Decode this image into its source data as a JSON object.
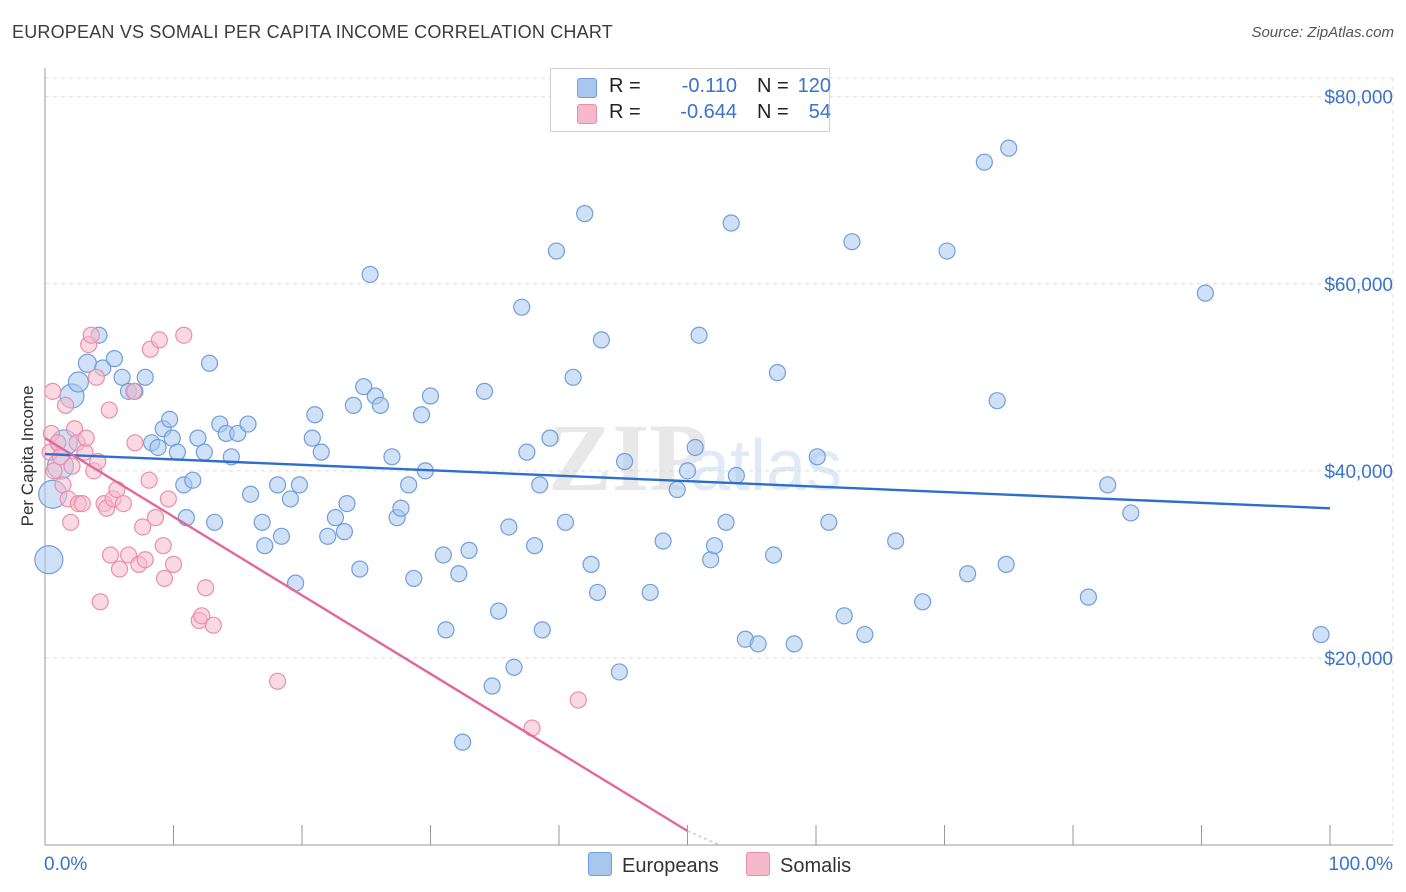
{
  "header": {
    "title": "EUROPEAN VS SOMALI PER CAPITA INCOME CORRELATION CHART",
    "source": "Source: ZipAtlas.com"
  },
  "legend": {
    "rows": [
      {
        "r_label": "R =",
        "r_value": "-0.110",
        "n_label": "N =",
        "n_value": "120"
      },
      {
        "r_label": "R =",
        "r_value": "-0.644",
        "n_label": "N =",
        "n_value": "54"
      }
    ]
  },
  "series_legend": [
    "Europeans",
    "Somalis"
  ],
  "colors": {
    "europeans_fill": "#a9c6ef",
    "europeans_stroke": "#6f9fdc",
    "europeans_line": "#2e6fcb",
    "somalis_fill": "#f6b9cc",
    "somalis_stroke": "#e98fab",
    "somalis_line": "#e0689a",
    "axis_label": "#3a73c9",
    "grid": "#dcdcdc"
  },
  "watermark": {
    "zip": "ZIP",
    "atlas": "atlas"
  },
  "chart_data": {
    "type": "scatter",
    "title": "EUROPEAN VS SOMALI PER CAPITA INCOME CORRELATION CHART",
    "xlabel": "",
    "ylabel": "Per Capita Income",
    "xlim": [
      0,
      100
    ],
    "ylim": [
      0,
      82000
    ],
    "x_tick_labels": [
      "0.0%",
      "100.0%"
    ],
    "y_ticks": [
      20000,
      40000,
      60000,
      80000
    ],
    "y_tick_labels": [
      "$20,000",
      "$40,000",
      "$60,000",
      "$80,000"
    ],
    "grid": true,
    "legend_position": "top-center",
    "series": [
      {
        "name": "Europeans",
        "trend": {
          "x": [
            0,
            100
          ],
          "y": [
            41800,
            36000
          ]
        },
        "points": [
          [
            0.3,
            30500,
            14
          ],
          [
            0.6,
            37500,
            14
          ],
          [
            1.2,
            40500,
            13
          ],
          [
            1.5,
            43000,
            13
          ],
          [
            2.1,
            48000,
            12
          ],
          [
            2.6,
            49500,
            10
          ],
          [
            3.3,
            51500,
            9
          ],
          [
            4.2,
            54500,
            8
          ],
          [
            4.5,
            51000,
            8
          ],
          [
            5.4,
            52000,
            8
          ],
          [
            6.0,
            50000,
            8
          ],
          [
            6.5,
            48500,
            8
          ],
          [
            7.0,
            48500,
            8
          ],
          [
            7.8,
            50000,
            8
          ],
          [
            8.3,
            43000,
            8
          ],
          [
            8.8,
            42500,
            8
          ],
          [
            9.2,
            44500,
            8
          ],
          [
            9.7,
            45500,
            8
          ],
          [
            9.9,
            43500,
            8
          ],
          [
            10.3,
            42000,
            8
          ],
          [
            10.8,
            38500,
            8
          ],
          [
            11.0,
            35000,
            8
          ],
          [
            11.5,
            39000,
            8
          ],
          [
            11.9,
            43500,
            8
          ],
          [
            12.4,
            42000,
            8
          ],
          [
            12.8,
            51500,
            8
          ],
          [
            13.2,
            34500,
            8
          ],
          [
            13.6,
            45000,
            8
          ],
          [
            14.1,
            44000,
            8
          ],
          [
            14.5,
            41500,
            8
          ],
          [
            15.0,
            44000,
            8
          ],
          [
            15.8,
            45000,
            8
          ],
          [
            16.0,
            37500,
            8
          ],
          [
            16.9,
            34500,
            8
          ],
          [
            17.1,
            32000,
            8
          ],
          [
            18.1,
            38500,
            8
          ],
          [
            18.4,
            33000,
            8
          ],
          [
            19.1,
            37000,
            8
          ],
          [
            19.5,
            28000,
            8
          ],
          [
            19.8,
            38500,
            8
          ],
          [
            20.8,
            43500,
            8
          ],
          [
            21.0,
            46000,
            8
          ],
          [
            21.5,
            42000,
            8
          ],
          [
            22.0,
            33000,
            8
          ],
          [
            22.6,
            35000,
            8
          ],
          [
            23.3,
            33500,
            8
          ],
          [
            23.5,
            36500,
            8
          ],
          [
            24.0,
            47000,
            8
          ],
          [
            24.5,
            29500,
            8
          ],
          [
            24.8,
            49000,
            8
          ],
          [
            25.3,
            61000,
            8
          ],
          [
            25.7,
            48000,
            8
          ],
          [
            26.1,
            47000,
            8
          ],
          [
            27.0,
            41500,
            8
          ],
          [
            27.4,
            35000,
            8
          ],
          [
            27.7,
            36000,
            8
          ],
          [
            28.3,
            38500,
            8
          ],
          [
            28.7,
            28500,
            8
          ],
          [
            29.3,
            46000,
            8
          ],
          [
            29.6,
            40000,
            8
          ],
          [
            30.0,
            48000,
            8
          ],
          [
            31.0,
            31000,
            8
          ],
          [
            31.2,
            23000,
            8
          ],
          [
            32.2,
            29000,
            8
          ],
          [
            32.5,
            11000,
            8
          ],
          [
            33.0,
            31500,
            8
          ],
          [
            34.2,
            48500,
            8
          ],
          [
            34.8,
            17000,
            8
          ],
          [
            35.3,
            25000,
            8
          ],
          [
            36.1,
            34000,
            8
          ],
          [
            36.5,
            19000,
            8
          ],
          [
            37.1,
            57500,
            8
          ],
          [
            37.5,
            42000,
            8
          ],
          [
            38.1,
            32000,
            8
          ],
          [
            38.5,
            38500,
            8
          ],
          [
            38.7,
            23000,
            8
          ],
          [
            39.3,
            43500,
            8
          ],
          [
            39.8,
            63500,
            8
          ],
          [
            40.5,
            34500,
            8
          ],
          [
            41.1,
            50000,
            8
          ],
          [
            42.0,
            67500,
            8
          ],
          [
            42.5,
            30000,
            8
          ],
          [
            43.0,
            27000,
            8
          ],
          [
            43.3,
            54000,
            8
          ],
          [
            44.7,
            18500,
            8
          ],
          [
            45.1,
            41000,
            8
          ],
          [
            47.1,
            27000,
            8
          ],
          [
            48.1,
            32500,
            8
          ],
          [
            49.2,
            38000,
            8
          ],
          [
            50.0,
            40000,
            8
          ],
          [
            50.6,
            42500,
            8
          ],
          [
            50.9,
            54500,
            8
          ],
          [
            51.8,
            30500,
            8
          ],
          [
            52.1,
            32000,
            8
          ],
          [
            53.0,
            34500,
            8
          ],
          [
            53.4,
            66500,
            8
          ],
          [
            53.8,
            39500,
            8
          ],
          [
            54.5,
            22000,
            8
          ],
          [
            55.5,
            21500,
            8
          ],
          [
            56.7,
            31000,
            8
          ],
          [
            57.0,
            50500,
            8
          ],
          [
            58.3,
            21500,
            8
          ],
          [
            60.1,
            41500,
            8
          ],
          [
            61.0,
            34500,
            8
          ],
          [
            62.2,
            24500,
            8
          ],
          [
            62.8,
            64500,
            8
          ],
          [
            63.8,
            22500,
            8
          ],
          [
            66.2,
            32500,
            8
          ],
          [
            68.3,
            26000,
            8
          ],
          [
            70.2,
            63500,
            8
          ],
          [
            71.8,
            29000,
            8
          ],
          [
            73.1,
            73000,
            8
          ],
          [
            74.1,
            47500,
            8
          ],
          [
            74.8,
            30000,
            8
          ],
          [
            75.0,
            74500,
            8
          ],
          [
            81.2,
            26500,
            8
          ],
          [
            82.7,
            38500,
            8
          ],
          [
            84.5,
            35500,
            8
          ],
          [
            90.3,
            59000,
            8
          ],
          [
            99.3,
            22500,
            8
          ]
        ]
      },
      {
        "name": "Somalis",
        "trend": {
          "x": [
            0,
            50
          ],
          "y": [
            43500,
            1500
          ]
        },
        "points": [
          [
            0.4,
            42000,
            8
          ],
          [
            0.5,
            44000,
            8
          ],
          [
            0.6,
            48500,
            8
          ],
          [
            0.7,
            40000,
            8
          ],
          [
            1.0,
            43000,
            8
          ],
          [
            1.2,
            41500,
            8
          ],
          [
            1.4,
            38500,
            8
          ],
          [
            1.6,
            47000,
            8
          ],
          [
            1.8,
            37000,
            8
          ],
          [
            2.0,
            34500,
            8
          ],
          [
            2.1,
            40500,
            8
          ],
          [
            2.3,
            44500,
            8
          ],
          [
            2.5,
            43000,
            8
          ],
          [
            2.6,
            36500,
            8
          ],
          [
            2.9,
            36500,
            8
          ],
          [
            3.1,
            42000,
            8
          ],
          [
            3.2,
            43500,
            8
          ],
          [
            3.4,
            53500,
            8
          ],
          [
            3.6,
            54500,
            8
          ],
          [
            3.8,
            40000,
            8
          ],
          [
            4.0,
            50000,
            8
          ],
          [
            4.1,
            41000,
            8
          ],
          [
            4.3,
            26000,
            8
          ],
          [
            4.6,
            36500,
            8
          ],
          [
            4.8,
            36000,
            8
          ],
          [
            5.0,
            46500,
            8
          ],
          [
            5.1,
            31000,
            8
          ],
          [
            5.3,
            37000,
            8
          ],
          [
            5.6,
            38000,
            8
          ],
          [
            5.8,
            29500,
            8
          ],
          [
            6.1,
            36500,
            8
          ],
          [
            6.5,
            31000,
            8
          ],
          [
            6.9,
            48500,
            8
          ],
          [
            7.0,
            43000,
            8
          ],
          [
            7.3,
            30000,
            8
          ],
          [
            7.6,
            34000,
            8
          ],
          [
            7.8,
            30500,
            8
          ],
          [
            8.1,
            39000,
            8
          ],
          [
            8.2,
            53000,
            8
          ],
          [
            8.6,
            35000,
            8
          ],
          [
            8.9,
            54000,
            8
          ],
          [
            9.2,
            32000,
            8
          ],
          [
            9.3,
            28500,
            8
          ],
          [
            9.6,
            37000,
            8
          ],
          [
            10.0,
            30000,
            8
          ],
          [
            10.8,
            54500,
            8
          ],
          [
            12.0,
            24000,
            8
          ],
          [
            12.2,
            24500,
            8
          ],
          [
            12.5,
            27500,
            8
          ],
          [
            13.1,
            23500,
            8
          ],
          [
            18.1,
            17500,
            8
          ],
          [
            37.9,
            12500,
            8
          ],
          [
            41.5,
            15500,
            8
          ],
          [
            19.5,
            28500,
            0
          ]
        ]
      }
    ]
  }
}
